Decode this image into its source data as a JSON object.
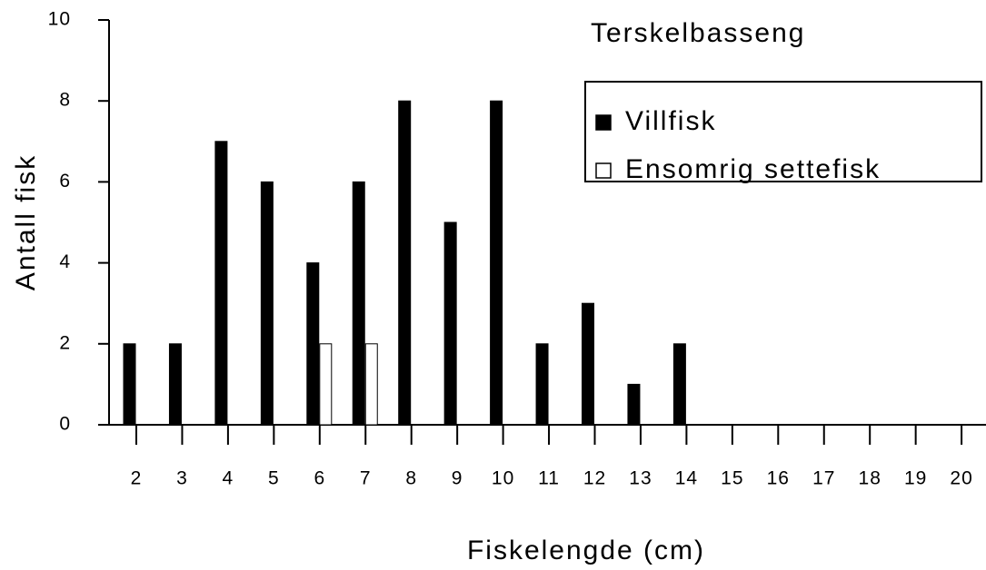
{
  "chart_data": {
    "type": "bar",
    "title": "Terskelbasseng",
    "x_label": "Fiskelengde (cm)",
    "y_label": "Antall fisk",
    "categories": [
      "2",
      "3",
      "4",
      "5",
      "6",
      "7",
      "8",
      "9",
      "10",
      "11",
      "12",
      "13",
      "14",
      "15",
      "16",
      "17",
      "18",
      "19",
      "20"
    ],
    "series": [
      {
        "name": "Villfisk",
        "color": "#000000",
        "values": [
          2,
          2,
          7,
          6,
          4,
          6,
          8,
          5,
          8,
          2,
          3,
          1,
          2,
          0,
          0,
          0,
          0,
          0,
          0
        ]
      },
      {
        "name": "Ensomrig settefisk",
        "color": "#ffffff",
        "values": [
          0,
          0,
          0,
          0,
          2,
          2,
          0,
          0,
          0,
          0,
          0,
          0,
          0,
          0,
          0,
          0,
          0,
          0,
          0
        ]
      }
    ],
    "ylim": [
      0,
      10
    ],
    "yticks": [
      0,
      2,
      4,
      6,
      8,
      10
    ],
    "grid": false,
    "legend": "upper right"
  }
}
